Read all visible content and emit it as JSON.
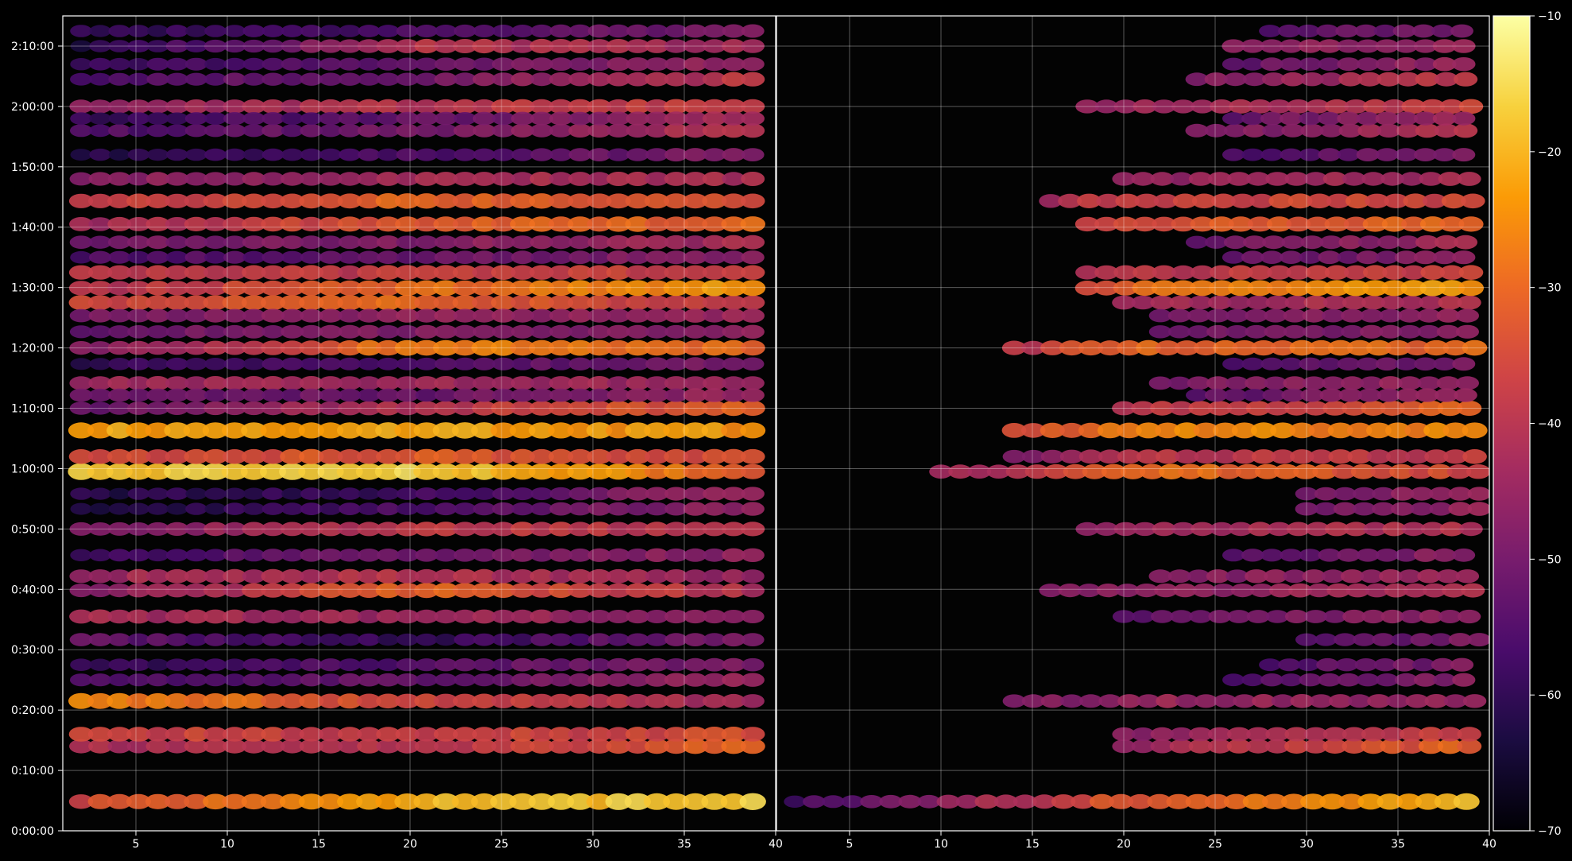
{
  "chart_data": {
    "type": "heatmap",
    "title": "",
    "xlabel": "",
    "ylabel": "",
    "grid": true,
    "y": {
      "range_seconds": [
        0,
        8100
      ],
      "ticks": [
        {
          "label": "0:00:00",
          "seconds": 0
        },
        {
          "label": "0:10:00",
          "seconds": 600
        },
        {
          "label": "0:20:00",
          "seconds": 1200
        },
        {
          "label": "0:30:00",
          "seconds": 1800
        },
        {
          "label": "0:40:00",
          "seconds": 2400
        },
        {
          "label": "0:50:00",
          "seconds": 3000
        },
        {
          "label": "1:00:00",
          "seconds": 3600
        },
        {
          "label": "1:10:00",
          "seconds": 4200
        },
        {
          "label": "1:20:00",
          "seconds": 4800
        },
        {
          "label": "1:30:00",
          "seconds": 5400
        },
        {
          "label": "1:40:00",
          "seconds": 6000
        },
        {
          "label": "1:50:00",
          "seconds": 6600
        },
        {
          "label": "2:00:00",
          "seconds": 7200
        },
        {
          "label": "2:10:00",
          "seconds": 7800
        }
      ]
    },
    "panels": [
      {
        "name": "left",
        "xlim": [
          1,
          40
        ],
        "xticks": [
          5,
          10,
          15,
          20,
          25,
          30,
          35,
          40
        ],
        "x_start": 2,
        "x_end": 39.5
      },
      {
        "name": "right",
        "xlim": [
          1,
          40
        ],
        "xticks": [
          5,
          10,
          15,
          20,
          25,
          30,
          35,
          40
        ],
        "x_start": 1.5,
        "x_end": 39.5
      }
    ],
    "colorbar": {
      "range": [
        -70,
        -10
      ],
      "ticks": [
        -10,
        -20,
        -30,
        -40,
        -50,
        -60,
        -70
      ],
      "tick_labels": [
        "−10",
        "−20",
        "−30",
        "−40",
        "−50",
        "−60",
        "−70"
      ],
      "colormap": "inferno",
      "colors": [
        "#000004",
        "#1b0c41",
        "#4a0c6b",
        "#781c6d",
        "#a52c60",
        "#cf4446",
        "#ed6925",
        "#fb9b06",
        "#f7d13d",
        "#fcffa4"
      ]
    },
    "bands": [
      {
        "t": 290,
        "left": [
          -36,
          -20,
          -16
        ],
        "right": [
          -58,
          -32,
          -18
        ],
        "right_start": 2
      },
      {
        "t": 840,
        "left": [
          -42,
          -40,
          -30
        ],
        "right": [
          -70,
          -44,
          -30
        ],
        "right_start": 20
      },
      {
        "t": 960,
        "left": [
          -36,
          -38,
          -34
        ],
        "right": [
          -70,
          -46,
          -36
        ],
        "right_start": 20
      },
      {
        "t": 1290,
        "left": [
          -24,
          -36,
          -44
        ],
        "right": [
          -62,
          -44,
          -46
        ],
        "right_start": 14
      },
      {
        "t": 2130,
        "left": [
          -42,
          -44,
          -46
        ],
        "right": [
          -70,
          -52,
          -46
        ],
        "right_start": 20
      },
      {
        "t": 2390,
        "left": [
          -50,
          -30,
          -42
        ],
        "right": [
          -60,
          -46,
          -42
        ],
        "right_start": 16
      },
      {
        "t": 2530,
        "left": [
          -44,
          -40,
          -46
        ],
        "right": [
          -70,
          -48,
          -44
        ],
        "right_start": 22
      },
      {
        "t": 3000,
        "left": [
          -50,
          -38,
          -40
        ],
        "right": [
          -62,
          -44,
          -40
        ],
        "right_start": 18
      },
      {
        "t": 3570,
        "left": [
          -18,
          -16,
          -32
        ],
        "right": [
          -60,
          -28,
          -36
        ],
        "right_start": 10
      },
      {
        "t": 3980,
        "left": [
          -22,
          -22,
          -24
        ],
        "right": [
          -54,
          -26,
          -26
        ],
        "right_start": 14
      },
      {
        "t": 4200,
        "left": [
          -52,
          -40,
          -30
        ],
        "right": [
          -64,
          -40,
          -30
        ],
        "right_start": 20
      },
      {
        "t": 4450,
        "left": [
          -44,
          -44,
          -44
        ],
        "right": [
          -70,
          -50,
          -44
        ],
        "right_start": 22
      },
      {
        "t": 4800,
        "left": [
          -50,
          -26,
          -30
        ],
        "right": [
          -60,
          -30,
          -30
        ],
        "right_start": 14
      },
      {
        "t": 5250,
        "left": [
          -36,
          -30,
          -40
        ],
        "right": [
          -70,
          -44,
          -40
        ],
        "right_start": 20
      },
      {
        "t": 5395,
        "left": [
          -42,
          -30,
          -22
        ],
        "right": [
          -62,
          -30,
          -22
        ],
        "right_start": 18
      },
      {
        "t": 5550,
        "left": [
          -40,
          -38,
          -36
        ],
        "right": [
          -66,
          -40,
          -36
        ],
        "right_start": 18
      },
      {
        "t": 6030,
        "left": [
          -44,
          -32,
          -30
        ],
        "right": [
          -66,
          -34,
          -30
        ],
        "right_start": 18
      },
      {
        "t": 6260,
        "left": [
          -40,
          -30,
          -36
        ],
        "right": [
          -62,
          -36,
          -36
        ],
        "right_start": 16
      },
      {
        "t": 7200,
        "left": [
          -46,
          -40,
          -36
        ],
        "right": [
          -64,
          -44,
          -36
        ],
        "right_start": 18
      },
      {
        "t": 7470,
        "left": [
          -56,
          -50,
          -38
        ],
        "right": [
          -70,
          -50,
          -38
        ],
        "right_start": 24
      },
      {
        "t": 7800,
        "left": [
          -64,
          -40,
          -44
        ],
        "right": [
          -70,
          -44,
          -46
        ],
        "right_start": 26
      },
      {
        "t": 1500,
        "left": [
          -56,
          -52,
          -44
        ],
        "right": [
          -70,
          -58,
          -46
        ],
        "right_start": 26
      },
      {
        "t": 1650,
        "left": [
          -60,
          -54,
          -48
        ],
        "right": [
          -70,
          -60,
          -48
        ],
        "right_start": 28
      },
      {
        "t": 1900,
        "left": [
          -52,
          -60,
          -48
        ],
        "right": [
          -70,
          -62,
          -48
        ],
        "right_start": 30
      },
      {
        "t": 2740,
        "left": [
          -58,
          -50,
          -46
        ],
        "right": [
          -70,
          -56,
          -46
        ],
        "right_start": 26
      },
      {
        "t": 3200,
        "left": [
          -64,
          -56,
          -44
        ],
        "right": [
          -70,
          -58,
          -44
        ],
        "right_start": 30
      },
      {
        "t": 3350,
        "left": [
          -62,
          -58,
          -42
        ],
        "right": [
          -70,
          -60,
          -42
        ],
        "right_start": 30
      },
      {
        "t": 3720,
        "left": [
          -36,
          -32,
          -36
        ],
        "right": [
          -66,
          -40,
          -38
        ],
        "right_start": 14
      },
      {
        "t": 4330,
        "left": [
          -50,
          -52,
          -44
        ],
        "right": [
          -70,
          -56,
          -44
        ],
        "right_start": 24
      },
      {
        "t": 4640,
        "left": [
          -60,
          -56,
          -48
        ],
        "right": [
          -70,
          -60,
          -48
        ],
        "right_start": 26
      },
      {
        "t": 4960,
        "left": [
          -52,
          -48,
          -46
        ],
        "right": [
          -70,
          -52,
          -46
        ],
        "right_start": 22
      },
      {
        "t": 5120,
        "left": [
          -50,
          -46,
          -44
        ],
        "right": [
          -70,
          -52,
          -44
        ],
        "right_start": 22
      },
      {
        "t": 5700,
        "left": [
          -56,
          -52,
          -46
        ],
        "right": [
          -70,
          -56,
          -46
        ],
        "right_start": 26
      },
      {
        "t": 5850,
        "left": [
          -50,
          -48,
          -42
        ],
        "right": [
          -70,
          -54,
          -42
        ],
        "right_start": 24
      },
      {
        "t": 6480,
        "left": [
          -48,
          -42,
          -42
        ],
        "right": [
          -70,
          -46,
          -42
        ],
        "right_start": 20
      },
      {
        "t": 6720,
        "left": [
          -62,
          -56,
          -48
        ],
        "right": [
          -70,
          -58,
          -48
        ],
        "right_start": 26
      },
      {
        "t": 6960,
        "left": [
          -56,
          -50,
          -40
        ],
        "right": [
          -70,
          -52,
          -40
        ],
        "right_start": 24
      },
      {
        "t": 7080,
        "left": [
          -60,
          -52,
          -42
        ],
        "right": [
          -70,
          -56,
          -42
        ],
        "right_start": 26
      },
      {
        "t": 7620,
        "left": [
          -60,
          -52,
          -44
        ],
        "right": [
          -70,
          -56,
          -44
        ],
        "right_start": 26
      },
      {
        "t": 7950,
        "left": [
          -60,
          -56,
          -48
        ],
        "right": [
          -70,
          -58,
          -48
        ],
        "right_start": 28
      }
    ]
  }
}
